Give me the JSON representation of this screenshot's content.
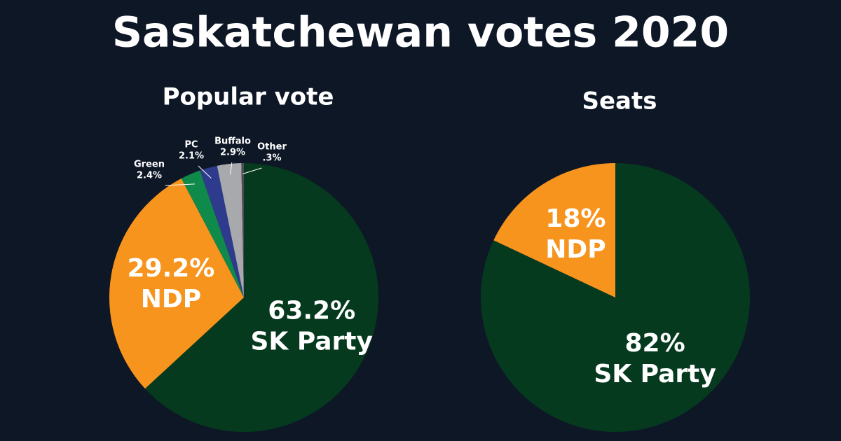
{
  "title": "Saskatchewan votes 2020",
  "chart_data": [
    {
      "type": "pie",
      "title": "Popular vote",
      "categories": [
        "SK Party",
        "NDP",
        "Green",
        "PC",
        "Buffalo",
        "Other"
      ],
      "values": [
        63.2,
        29.2,
        2.4,
        2.1,
        2.9,
        0.3
      ],
      "value_labels": [
        "63.2%",
        "29.2%",
        "2.4%",
        "2.1%",
        "2.9%",
        ".3%"
      ],
      "colors": [
        "#053a1f",
        "#f7941d",
        "#0f8a4a",
        "#2e3a8c",
        "#a7a9ac",
        "#4d4d4f"
      ]
    },
    {
      "type": "pie",
      "title": "Seats",
      "categories": [
        "SK Party",
        "NDP"
      ],
      "values": [
        82,
        18
      ],
      "value_labels": [
        "82%",
        "18%"
      ],
      "colors": [
        "#053a1f",
        "#f7941d"
      ]
    }
  ]
}
